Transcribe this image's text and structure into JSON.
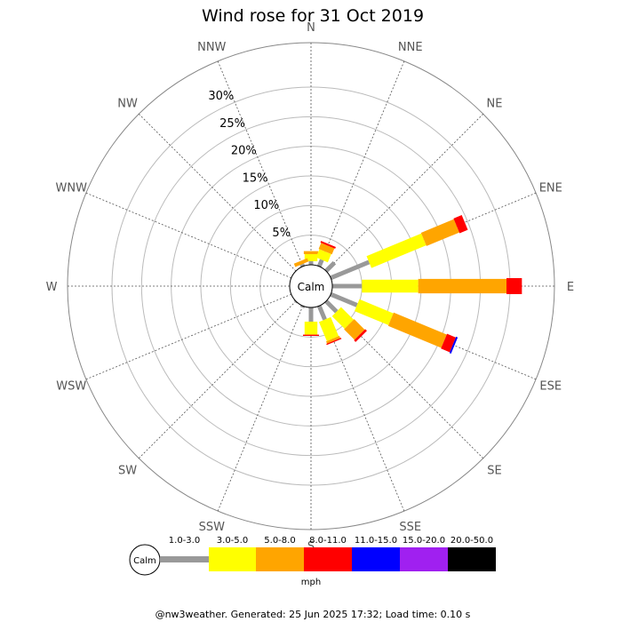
{
  "chart_data": {
    "type": "windrose",
    "title": "Wind rose for 31 Oct 2019",
    "directions": [
      "N",
      "NNE",
      "NE",
      "ENE",
      "E",
      "ESE",
      "SE",
      "SSE",
      "S",
      "SSW",
      "SW",
      "WSW",
      "W",
      "WNW",
      "NW",
      "NNW"
    ],
    "radial_ticks": [
      "5%",
      "10%",
      "15%",
      "20%",
      "25%",
      "30%"
    ],
    "radial_tick_values": [
      5,
      10,
      15,
      20,
      25,
      30
    ],
    "radial_max": 37.5,
    "calm_label": "Calm",
    "unit": "mph",
    "bins": [
      {
        "range": "1.0-3.0",
        "color": "#999999"
      },
      {
        "range": "3.0-5.0",
        "color": "#ffff00"
      },
      {
        "range": "5.0-8.0",
        "color": "#ffa500"
      },
      {
        "range": "8.0-11.0",
        "color": "#ff0000"
      },
      {
        "range": "11.0-15.0",
        "color": "#0000ff"
      },
      {
        "range": "15.0-20.0",
        "color": "#a020f0"
      },
      {
        "range": "20.0-50.0",
        "color": "#000000"
      }
    ],
    "series": [
      {
        "direction": "N",
        "cumulative": [
          0.6,
          1.8,
          2.3,
          2.3,
          2.3,
          2.3,
          2.3
        ]
      },
      {
        "direction": "NNE",
        "cumulative": [
          1.2,
          2.7,
          3.8,
          4.1,
          4.1,
          4.1,
          4.1
        ]
      },
      {
        "direction": "NE",
        "cumulative": [
          2.0,
          2.0,
          2.0,
          2.0,
          2.0,
          2.0,
          2.0
        ]
      },
      {
        "direction": "ENE",
        "cumulative": [
          7.0,
          17.0,
          23.0,
          24.5,
          24.5,
          24.5,
          24.5
        ]
      },
      {
        "direction": "E",
        "cumulative": [
          5.0,
          14.5,
          29.4,
          32.0,
          32.0,
          32.0,
          32.0
        ]
      },
      {
        "direction": "ESE",
        "cumulative": [
          4.8,
          11.0,
          20.7,
          22.3,
          22.6,
          22.6,
          22.6
        ]
      },
      {
        "direction": "SE",
        "cumulative": [
          2.5,
          5.5,
          8.0,
          8.4,
          8.4,
          8.4,
          8.4
        ]
      },
      {
        "direction": "SSE",
        "cumulative": [
          2.5,
          6.0,
          6.4,
          6.6,
          6.6,
          6.6,
          6.6
        ]
      },
      {
        "direction": "S",
        "cumulative": [
          2.4,
          4.6,
          4.6,
          4.8,
          4.8,
          4.8,
          4.8
        ]
      },
      {
        "direction": "SSW",
        "cumulative": [
          0.3,
          0.3,
          0.3,
          0.3,
          0.3,
          0.3,
          0.3
        ]
      },
      {
        "direction": "SW",
        "cumulative": [
          0.2,
          0.2,
          0.2,
          0.2,
          0.2,
          0.2,
          0.2
        ]
      },
      {
        "direction": "WSW",
        "cumulative": [
          0.0,
          0.0,
          0.0,
          0.0,
          0.0,
          0.0,
          0.0
        ]
      },
      {
        "direction": "W",
        "cumulative": [
          0.0,
          0.0,
          0.0,
          0.0,
          0.0,
          0.0,
          0.0
        ]
      },
      {
        "direction": "WNW",
        "cumulative": [
          0.0,
          0.0,
          0.0,
          0.0,
          0.0,
          0.0,
          0.0
        ]
      },
      {
        "direction": "NW",
        "cumulative": [
          0.0,
          0.0,
          0.0,
          0.0,
          0.0,
          0.0,
          0.0
        ]
      },
      {
        "direction": "NNW",
        "cumulative": [
          0.4,
          0.4,
          1.0,
          1.0,
          1.0,
          1.0,
          1.0
        ]
      }
    ]
  },
  "footer": "@nw3weather. Generated: 25 Jun 2025 17:32; Load time: 0.10 s"
}
